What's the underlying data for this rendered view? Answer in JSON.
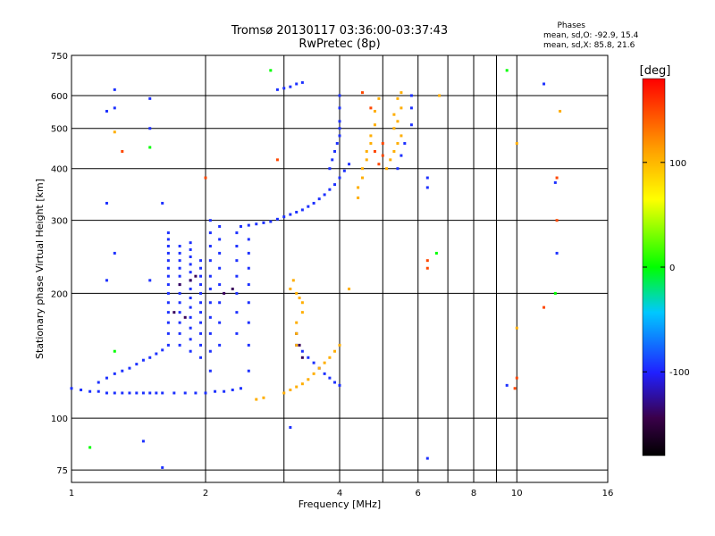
{
  "chart_data": {
    "type": "scatter",
    "title": "Tromsø 20130117 03:36:00-03:37:43",
    "subtitle": "RwPretec (8p)",
    "xlabel": "Frequency [MHz]",
    "ylabel": "Stationary phase Virtual Height [km]",
    "x_scale": "log",
    "y_scale": "log",
    "xlim": [
      1,
      16
    ],
    "ylim": [
      70,
      750
    ],
    "x_ticks": [
      1,
      2,
      4,
      6,
      8,
      10,
      16
    ],
    "x_minor_gridlines": [
      3,
      5,
      7,
      9
    ],
    "y_ticks": [
      75,
      100,
      200,
      300,
      400,
      500,
      600,
      750
    ],
    "grid": true,
    "phase_info": {
      "heading": "Phases",
      "line_o": "mean, sd,O:  -92.9, 15.4",
      "line_x": "mean, sd,X:  85.8, 21.6"
    },
    "colorbar": {
      "label": "[deg]",
      "range": [
        -180,
        180
      ],
      "ticks": [
        100,
        0,
        -100
      ],
      "tick_labels": [
        "100",
        "0",
        "-100"
      ]
    },
    "series": [
      {
        "phase": -95,
        "points": [
          [
            1.0,
            118
          ],
          [
            1.05,
            117
          ],
          [
            1.1,
            116
          ],
          [
            1.15,
            116
          ],
          [
            1.2,
            115
          ],
          [
            1.25,
            115
          ],
          [
            1.3,
            115
          ],
          [
            1.35,
            115
          ],
          [
            1.4,
            115
          ],
          [
            1.45,
            115
          ],
          [
            1.5,
            115
          ],
          [
            1.55,
            115
          ],
          [
            1.6,
            115
          ],
          [
            1.7,
            115
          ],
          [
            1.8,
            115
          ],
          [
            1.9,
            115
          ],
          [
            2.0,
            115
          ],
          [
            2.1,
            116
          ],
          [
            2.2,
            116
          ],
          [
            2.3,
            117
          ],
          [
            2.4,
            118
          ],
          [
            1.15,
            122
          ],
          [
            1.2,
            125
          ],
          [
            1.25,
            128
          ],
          [
            1.3,
            130
          ],
          [
            1.35,
            132
          ],
          [
            1.4,
            135
          ],
          [
            1.45,
            138
          ],
          [
            1.5,
            140
          ],
          [
            1.55,
            143
          ],
          [
            1.6,
            146
          ],
          [
            1.65,
            150
          ],
          [
            1.65,
            160
          ],
          [
            1.65,
            170
          ],
          [
            1.65,
            180
          ],
          [
            1.65,
            190
          ],
          [
            1.65,
            200
          ],
          [
            1.65,
            210
          ],
          [
            1.65,
            220
          ],
          [
            1.65,
            230
          ],
          [
            1.65,
            240
          ],
          [
            1.65,
            250
          ],
          [
            1.65,
            260
          ],
          [
            1.65,
            270
          ],
          [
            1.65,
            280
          ],
          [
            1.75,
            150
          ],
          [
            1.75,
            160
          ],
          [
            1.75,
            170
          ],
          [
            1.75,
            180
          ],
          [
            1.75,
            190
          ],
          [
            1.75,
            200
          ],
          [
            1.75,
            210
          ],
          [
            1.75,
            220
          ],
          [
            1.75,
            230
          ],
          [
            1.75,
            240
          ],
          [
            1.75,
            250
          ],
          [
            1.75,
            260
          ],
          [
            1.85,
            145
          ],
          [
            1.85,
            155
          ],
          [
            1.85,
            165
          ],
          [
            1.85,
            175
          ],
          [
            1.85,
            185
          ],
          [
            1.85,
            195
          ],
          [
            1.85,
            205
          ],
          [
            1.85,
            215
          ],
          [
            1.85,
            225
          ],
          [
            1.85,
            235
          ],
          [
            1.85,
            245
          ],
          [
            1.85,
            255
          ],
          [
            1.85,
            265
          ],
          [
            1.95,
            140
          ],
          [
            1.95,
            150
          ],
          [
            1.95,
            160
          ],
          [
            1.95,
            170
          ],
          [
            1.95,
            180
          ],
          [
            1.95,
            190
          ],
          [
            1.95,
            200
          ],
          [
            1.95,
            210
          ],
          [
            1.95,
            220
          ],
          [
            1.95,
            230
          ],
          [
            1.95,
            240
          ],
          [
            2.05,
            130
          ],
          [
            2.05,
            145
          ],
          [
            2.05,
            160
          ],
          [
            2.05,
            175
          ],
          [
            2.05,
            190
          ],
          [
            2.05,
            205
          ],
          [
            2.05,
            220
          ],
          [
            2.05,
            240
          ],
          [
            2.05,
            260
          ],
          [
            2.05,
            280
          ],
          [
            2.05,
            300
          ],
          [
            2.15,
            150
          ],
          [
            2.15,
            170
          ],
          [
            2.15,
            190
          ],
          [
            2.15,
            210
          ],
          [
            2.15,
            230
          ],
          [
            2.15,
            250
          ],
          [
            2.15,
            270
          ],
          [
            2.15,
            290
          ],
          [
            2.35,
            160
          ],
          [
            2.35,
            180
          ],
          [
            2.35,
            200
          ],
          [
            2.35,
            220
          ],
          [
            2.35,
            240
          ],
          [
            2.35,
            260
          ],
          [
            2.35,
            280
          ],
          [
            2.5,
            130
          ],
          [
            2.5,
            150
          ],
          [
            2.5,
            170
          ],
          [
            2.5,
            190
          ],
          [
            2.5,
            210
          ],
          [
            2.5,
            230
          ],
          [
            2.5,
            250
          ],
          [
            2.5,
            270
          ],
          [
            2.4,
            290
          ],
          [
            2.5,
            292
          ],
          [
            2.6,
            294
          ],
          [
            2.7,
            296
          ],
          [
            2.8,
            298
          ],
          [
            2.9,
            302
          ],
          [
            3.0,
            306
          ],
          [
            3.1,
            310
          ],
          [
            3.2,
            314
          ],
          [
            3.3,
            318
          ],
          [
            3.4,
            324
          ],
          [
            3.5,
            330
          ],
          [
            3.6,
            338
          ],
          [
            3.7,
            346
          ],
          [
            3.8,
            356
          ],
          [
            3.9,
            366
          ],
          [
            4.0,
            380
          ],
          [
            4.1,
            395
          ],
          [
            4.2,
            410
          ],
          [
            3.2,
            150
          ],
          [
            3.3,
            145
          ],
          [
            3.4,
            140
          ],
          [
            3.5,
            136
          ],
          [
            3.6,
            132
          ],
          [
            3.7,
            128
          ],
          [
            3.8,
            125
          ],
          [
            3.9,
            122
          ],
          [
            4.0,
            120
          ],
          [
            3.8,
            400
          ],
          [
            3.85,
            420
          ],
          [
            3.9,
            440
          ],
          [
            3.95,
            460
          ],
          [
            4.0,
            480
          ],
          [
            4.0,
            500
          ],
          [
            4.0,
            520
          ],
          [
            4.0,
            560
          ],
          [
            4.0,
            600
          ],
          [
            2.9,
            620
          ],
          [
            3.0,
            625
          ],
          [
            3.1,
            630
          ],
          [
            3.2,
            640
          ],
          [
            3.3,
            645
          ],
          [
            1.2,
            550
          ],
          [
            1.25,
            560
          ],
          [
            1.25,
            620
          ],
          [
            1.5,
            590
          ],
          [
            1.5,
            500
          ],
          [
            1.6,
            330
          ],
          [
            1.5,
            215
          ],
          [
            1.2,
            330
          ],
          [
            1.25,
            250
          ],
          [
            1.2,
            215
          ],
          [
            5.8,
            600
          ],
          [
            5.8,
            560
          ],
          [
            5.8,
            510
          ],
          [
            5.6,
            460
          ],
          [
            5.5,
            430
          ],
          [
            5.4,
            400
          ],
          [
            6.3,
            380
          ],
          [
            6.3,
            360
          ],
          [
            6.3,
            80
          ],
          [
            9.5,
            120
          ],
          [
            12.3,
            250
          ],
          [
            12.2,
            370
          ],
          [
            11.5,
            640
          ],
          [
            3.1,
            95
          ],
          [
            1.45,
            88
          ],
          [
            1.6,
            76
          ]
        ]
      },
      {
        "phase": -140,
        "points": [
          [
            1.75,
            210
          ],
          [
            1.85,
            215
          ],
          [
            1.9,
            220
          ],
          [
            2.2,
            200
          ],
          [
            2.3,
            205
          ],
          [
            3.2,
            160
          ],
          [
            3.25,
            150
          ],
          [
            3.3,
            140
          ],
          [
            1.7,
            180
          ],
          [
            1.8,
            175
          ]
        ]
      },
      {
        "phase": 105,
        "points": [
          [
            3.0,
            115
          ],
          [
            3.1,
            117
          ],
          [
            3.2,
            119
          ],
          [
            3.3,
            121
          ],
          [
            3.4,
            124
          ],
          [
            3.5,
            128
          ],
          [
            3.6,
            132
          ],
          [
            3.7,
            136
          ],
          [
            3.8,
            140
          ],
          [
            3.9,
            145
          ],
          [
            4.0,
            150
          ],
          [
            3.2,
            150
          ],
          [
            3.2,
            160
          ],
          [
            3.2,
            170
          ],
          [
            3.3,
            180
          ],
          [
            3.3,
            190
          ],
          [
            3.2,
            200
          ],
          [
            3.1,
            205
          ],
          [
            3.15,
            215
          ],
          [
            3.25,
            195
          ],
          [
            4.4,
            340
          ],
          [
            4.4,
            360
          ],
          [
            4.5,
            380
          ],
          [
            4.5,
            400
          ],
          [
            4.6,
            420
          ],
          [
            4.6,
            440
          ],
          [
            4.7,
            460
          ],
          [
            4.7,
            480
          ],
          [
            4.8,
            510
          ],
          [
            4.8,
            550
          ],
          [
            4.9,
            590
          ],
          [
            5.1,
            400
          ],
          [
            5.2,
            420
          ],
          [
            5.3,
            440
          ],
          [
            5.4,
            460
          ],
          [
            5.5,
            480
          ],
          [
            5.3,
            500
          ],
          [
            5.4,
            520
          ],
          [
            5.3,
            540
          ],
          [
            5.5,
            560
          ],
          [
            5.4,
            590
          ],
          [
            5.5,
            610
          ],
          [
            2.7,
            112
          ],
          [
            2.6,
            111
          ],
          [
            4.2,
            205
          ],
          [
            10.0,
            460
          ],
          [
            10.0,
            165
          ],
          [
            6.7,
            600
          ],
          [
            1.25,
            490
          ],
          [
            12.5,
            550
          ]
        ]
      },
      {
        "phase": 150,
        "points": [
          [
            4.9,
            410
          ],
          [
            5.0,
            430
          ],
          [
            4.8,
            440
          ],
          [
            5.0,
            460
          ],
          [
            4.7,
            560
          ],
          [
            4.5,
            610
          ],
          [
            6.3,
            240
          ],
          [
            6.3,
            230
          ],
          [
            10.0,
            125
          ],
          [
            9.9,
            118
          ],
          [
            11.5,
            185
          ],
          [
            12.3,
            300
          ],
          [
            12.3,
            380
          ],
          [
            1.3,
            440
          ],
          [
            2.9,
            420
          ],
          [
            2.0,
            380
          ]
        ]
      },
      {
        "phase": 0,
        "points": [
          [
            1.1,
            85
          ],
          [
            1.25,
            145
          ],
          [
            1.5,
            450
          ],
          [
            2.8,
            690
          ],
          [
            6.6,
            250
          ],
          [
            9.5,
            690
          ],
          [
            12.2,
            200
          ]
        ]
      }
    ]
  }
}
